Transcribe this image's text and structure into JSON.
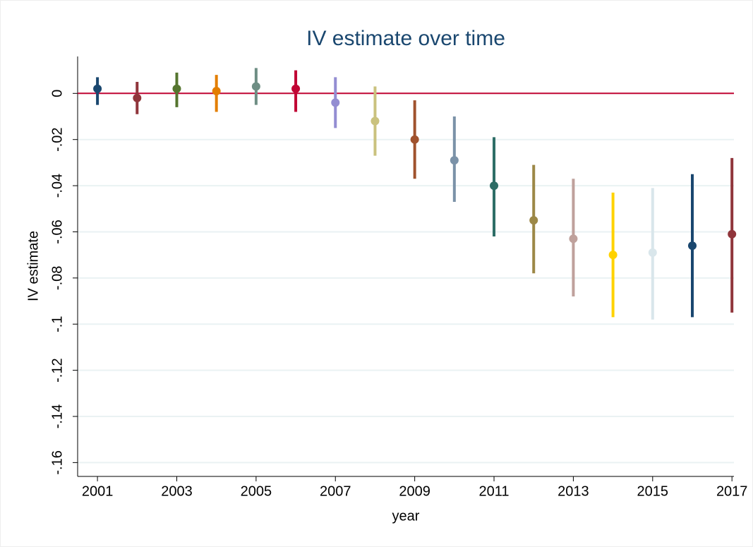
{
  "chart_data": {
    "type": "errorscatter",
    "title": "IV estimate over time",
    "x_label": "year",
    "y_label": "IV estimate",
    "x": [
      2001,
      2002,
      2003,
      2004,
      2005,
      2006,
      2007,
      2008,
      2009,
      2010,
      2011,
      2012,
      2013,
      2014,
      2015,
      2016,
      2017
    ],
    "values": [
      0.002,
      -0.002,
      0.002,
      0.001,
      0.003,
      0.002,
      -0.004,
      -0.012,
      -0.02,
      -0.029,
      -0.04,
      -0.055,
      -0.063,
      -0.07,
      -0.069,
      -0.066,
      -0.061
    ],
    "lower": [
      -0.005,
      -0.009,
      -0.006,
      -0.008,
      -0.005,
      -0.008,
      -0.015,
      -0.027,
      -0.037,
      -0.047,
      -0.062,
      -0.078,
      -0.088,
      -0.097,
      -0.098,
      -0.097,
      -0.095
    ],
    "upper": [
      0.007,
      0.005,
      0.009,
      0.008,
      0.011,
      0.01,
      0.007,
      0.003,
      -0.003,
      -0.01,
      -0.019,
      -0.031,
      -0.037,
      -0.043,
      -0.041,
      -0.035,
      -0.028
    ],
    "colors": [
      "#1a476f",
      "#90353b",
      "#55752f",
      "#e37e00",
      "#6e8e84",
      "#c10534",
      "#938dd2",
      "#cac27e",
      "#a0522d",
      "#7b92a8",
      "#2d6d66",
      "#9c8847",
      "#bfa19c",
      "#ffd200",
      "#d9e6eb",
      "#1a476f",
      "#90353b"
    ],
    "xlim": [
      2000.5,
      2017.05
    ],
    "ylim": [
      -0.166,
      0.016
    ],
    "xticks": [
      2001,
      2003,
      2005,
      2007,
      2009,
      2011,
      2013,
      2015,
      2017
    ],
    "yticks": [
      0,
      {
        "value": -0.02,
        "label": "-.02"
      },
      {
        "value": -0.04,
        "label": "-.04"
      },
      {
        "value": -0.06,
        "label": "-.06"
      },
      {
        "value": -0.08,
        "label": "-.08"
      },
      {
        "value": -0.1,
        "label": "-.1"
      },
      {
        "value": -0.12,
        "label": "-.12"
      },
      {
        "value": -0.14,
        "label": "-.14"
      },
      {
        "value": -0.16,
        "label": "-.16"
      }
    ],
    "grid": true,
    "grid_color": "#eaf2f3",
    "refline": 0,
    "refline_color": "#c10534"
  }
}
